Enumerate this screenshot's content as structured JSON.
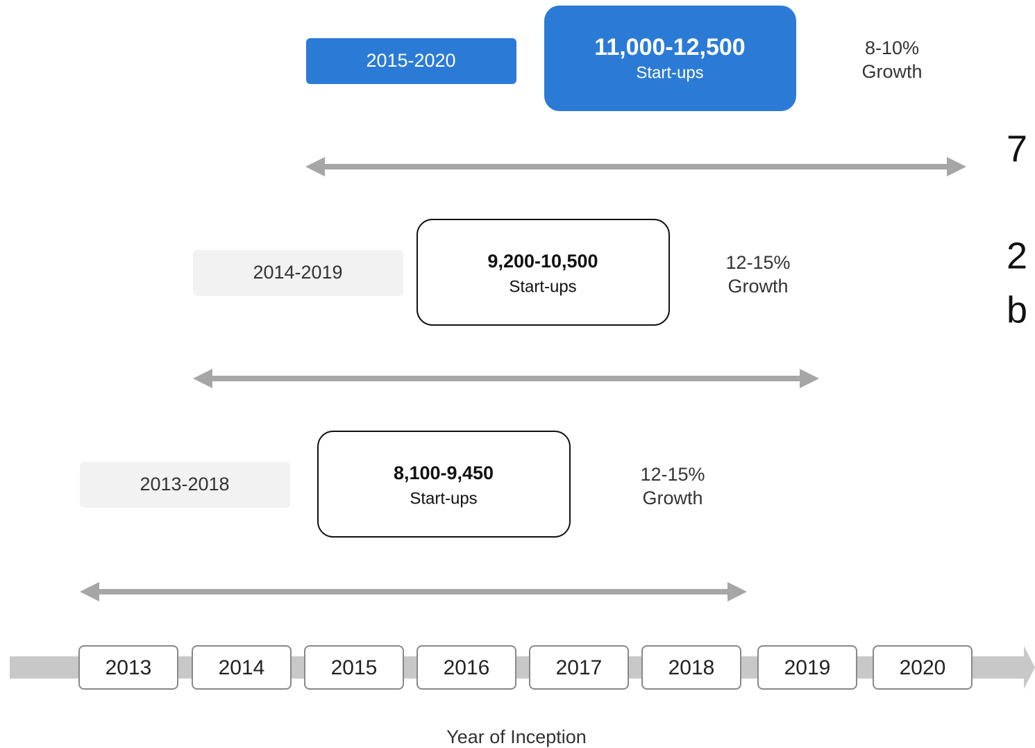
{
  "rows": [
    {
      "period": "2015-2020",
      "count": "11,000-12,500",
      "unit": "Start-ups",
      "growth_value": "8-10%",
      "growth_label": "Growth"
    },
    {
      "period": "2014-2019",
      "count": "9,200-10,500",
      "unit": "Start-ups",
      "growth_value": "12-15%",
      "growth_label": "Growth"
    },
    {
      "period": "2013-2018",
      "count": "8,100-9,450",
      "unit": "Start-ups",
      "growth_value": "12-15%",
      "growth_label": "Growth"
    }
  ],
  "years": [
    "2013",
    "2014",
    "2015",
    "2016",
    "2017",
    "2018",
    "2019",
    "2020"
  ],
  "axis_label": "Year of Inception",
  "edge_text": [
    "7",
    "2",
    "b"
  ]
}
